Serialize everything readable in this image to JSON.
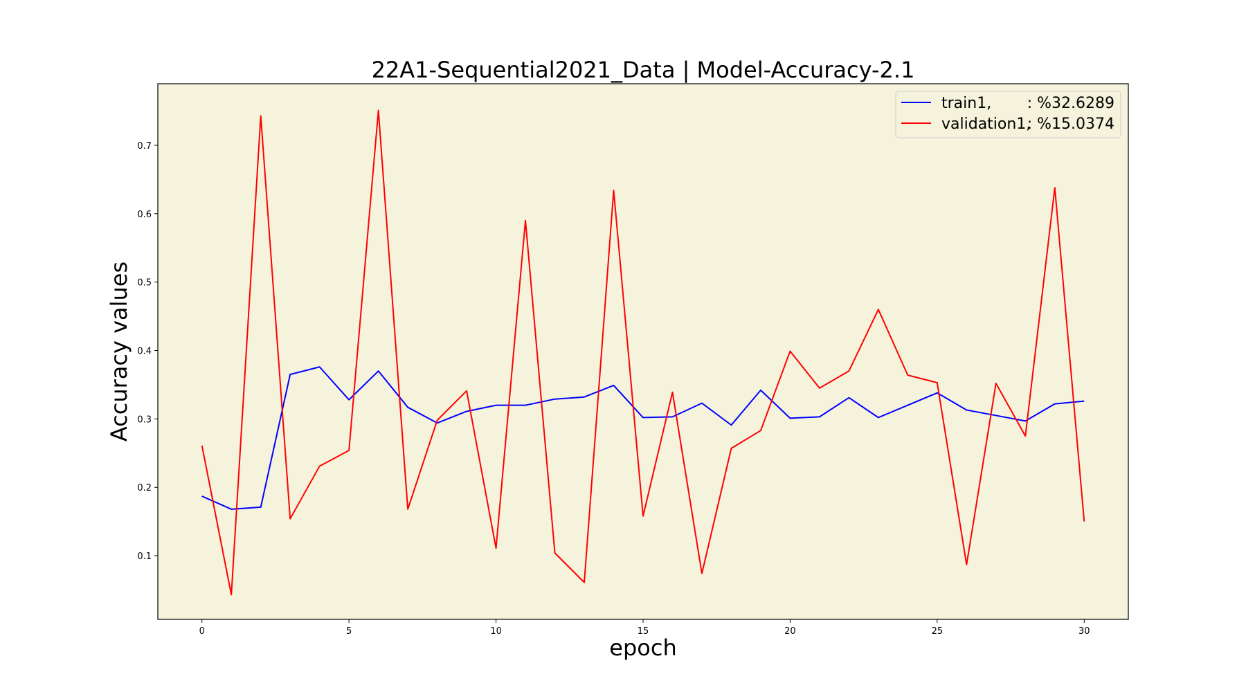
{
  "chart_data": {
    "type": "line",
    "title": "22A1-Sequential2021_Data | Model-Accuracy-2.1",
    "xlabel": "epoch",
    "ylabel": "Accuracy values",
    "xlim": [
      -1.5,
      31.5
    ],
    "ylim": [
      0.007,
      0.79
    ],
    "x_ticks": [
      0,
      5,
      10,
      15,
      20,
      25,
      30
    ],
    "y_ticks": [
      0.1,
      0.2,
      0.3,
      0.4,
      0.5,
      0.6,
      0.7
    ],
    "plot_background": "#f5f3dc",
    "legend_position": "top-right",
    "grid": false,
    "x": [
      0,
      1,
      2,
      3,
      4,
      5,
      6,
      7,
      8,
      9,
      10,
      11,
      12,
      13,
      14,
      15,
      16,
      17,
      18,
      19,
      20,
      21,
      22,
      23,
      24,
      25,
      26,
      27,
      28,
      29,
      30
    ],
    "series": [
      {
        "name": "train1,",
        "legend_value": ": %32.6289",
        "color": "#0000ff",
        "values": [
          0.187,
          0.168,
          0.171,
          0.365,
          0.376,
          0.328,
          0.37,
          0.317,
          0.294,
          0.311,
          0.32,
          0.32,
          0.329,
          0.332,
          0.349,
          0.302,
          0.303,
          0.323,
          0.291,
          0.342,
          0.301,
          0.303,
          0.331,
          0.302,
          0.32,
          0.338,
          0.313,
          0.305,
          0.297,
          0.322,
          0.326
        ]
      },
      {
        "name": "validation1,",
        "legend_value": ": %15.0374",
        "color": "#ff0000",
        "values": [
          0.261,
          0.043,
          0.743,
          0.154,
          0.231,
          0.254,
          0.751,
          0.168,
          0.298,
          0.341,
          0.111,
          0.59,
          0.104,
          0.061,
          0.634,
          0.158,
          0.339,
          0.074,
          0.257,
          0.283,
          0.399,
          0.345,
          0.37,
          0.46,
          0.364,
          0.353,
          0.087,
          0.352,
          0.275,
          0.638,
          0.15
        ]
      }
    ]
  }
}
